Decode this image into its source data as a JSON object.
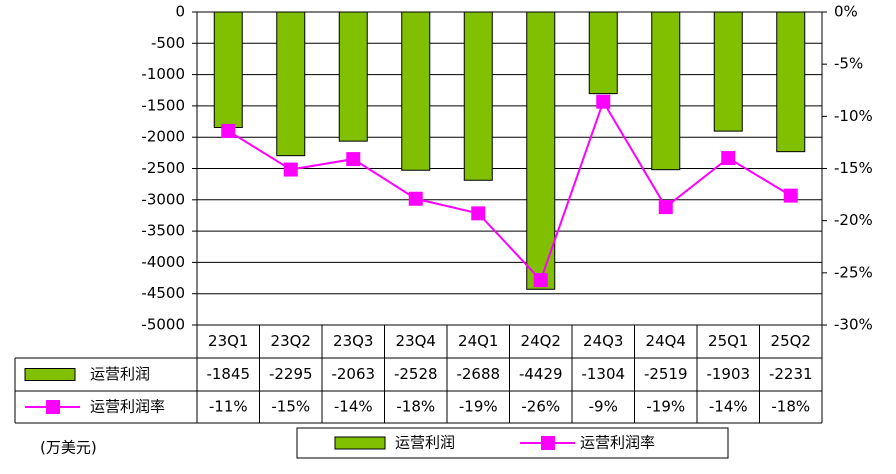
{
  "chart_data": {
    "type": "bar",
    "y_label": "(万美元)",
    "categories": [
      "23Q1",
      "23Q2",
      "23Q3",
      "23Q4",
      "24Q1",
      "24Q2",
      "24Q3",
      "24Q4",
      "25Q1",
      "25Q2"
    ],
    "series": [
      {
        "name": "运营利润",
        "type": "bar",
        "color": "#80c000",
        "values": [
          -1845,
          -2295,
          -2063,
          -2528,
          -2688,
          -4429,
          -1304,
          -2519,
          -1903,
          -2231
        ]
      },
      {
        "name": "运营利润率",
        "type": "line",
        "axis": "y2",
        "color": "#ff00ff",
        "values": [
          -11.4,
          -15.1,
          -14.1,
          -17.9,
          -19.3,
          -25.7,
          -8.6,
          -18.7,
          -14.0,
          -17.6
        ],
        "value_labels": [
          "-11%",
          "-15%",
          "-14%",
          "-18%",
          "-19%",
          "-26%",
          "-9%",
          "-19%",
          "-14%",
          "-18%"
        ]
      }
    ],
    "ylim": [
      -5000,
      0
    ],
    "yticks": [
      0,
      -500,
      -1000,
      -1500,
      -2000,
      -2500,
      -3000,
      -3500,
      -4000,
      -4500,
      -5000
    ],
    "y2lim": [
      -30,
      0
    ],
    "y2ticks": [
      {
        "value": 0,
        "label": "0%"
      },
      {
        "value": -5,
        "label": "-5%"
      },
      {
        "value": -10,
        "label": "-10%"
      },
      {
        "value": -15,
        "label": "-15%"
      },
      {
        "value": -20,
        "label": "-20%"
      },
      {
        "value": -25,
        "label": "-25%"
      },
      {
        "value": -30,
        "label": "-30%"
      }
    ],
    "grid": true
  }
}
